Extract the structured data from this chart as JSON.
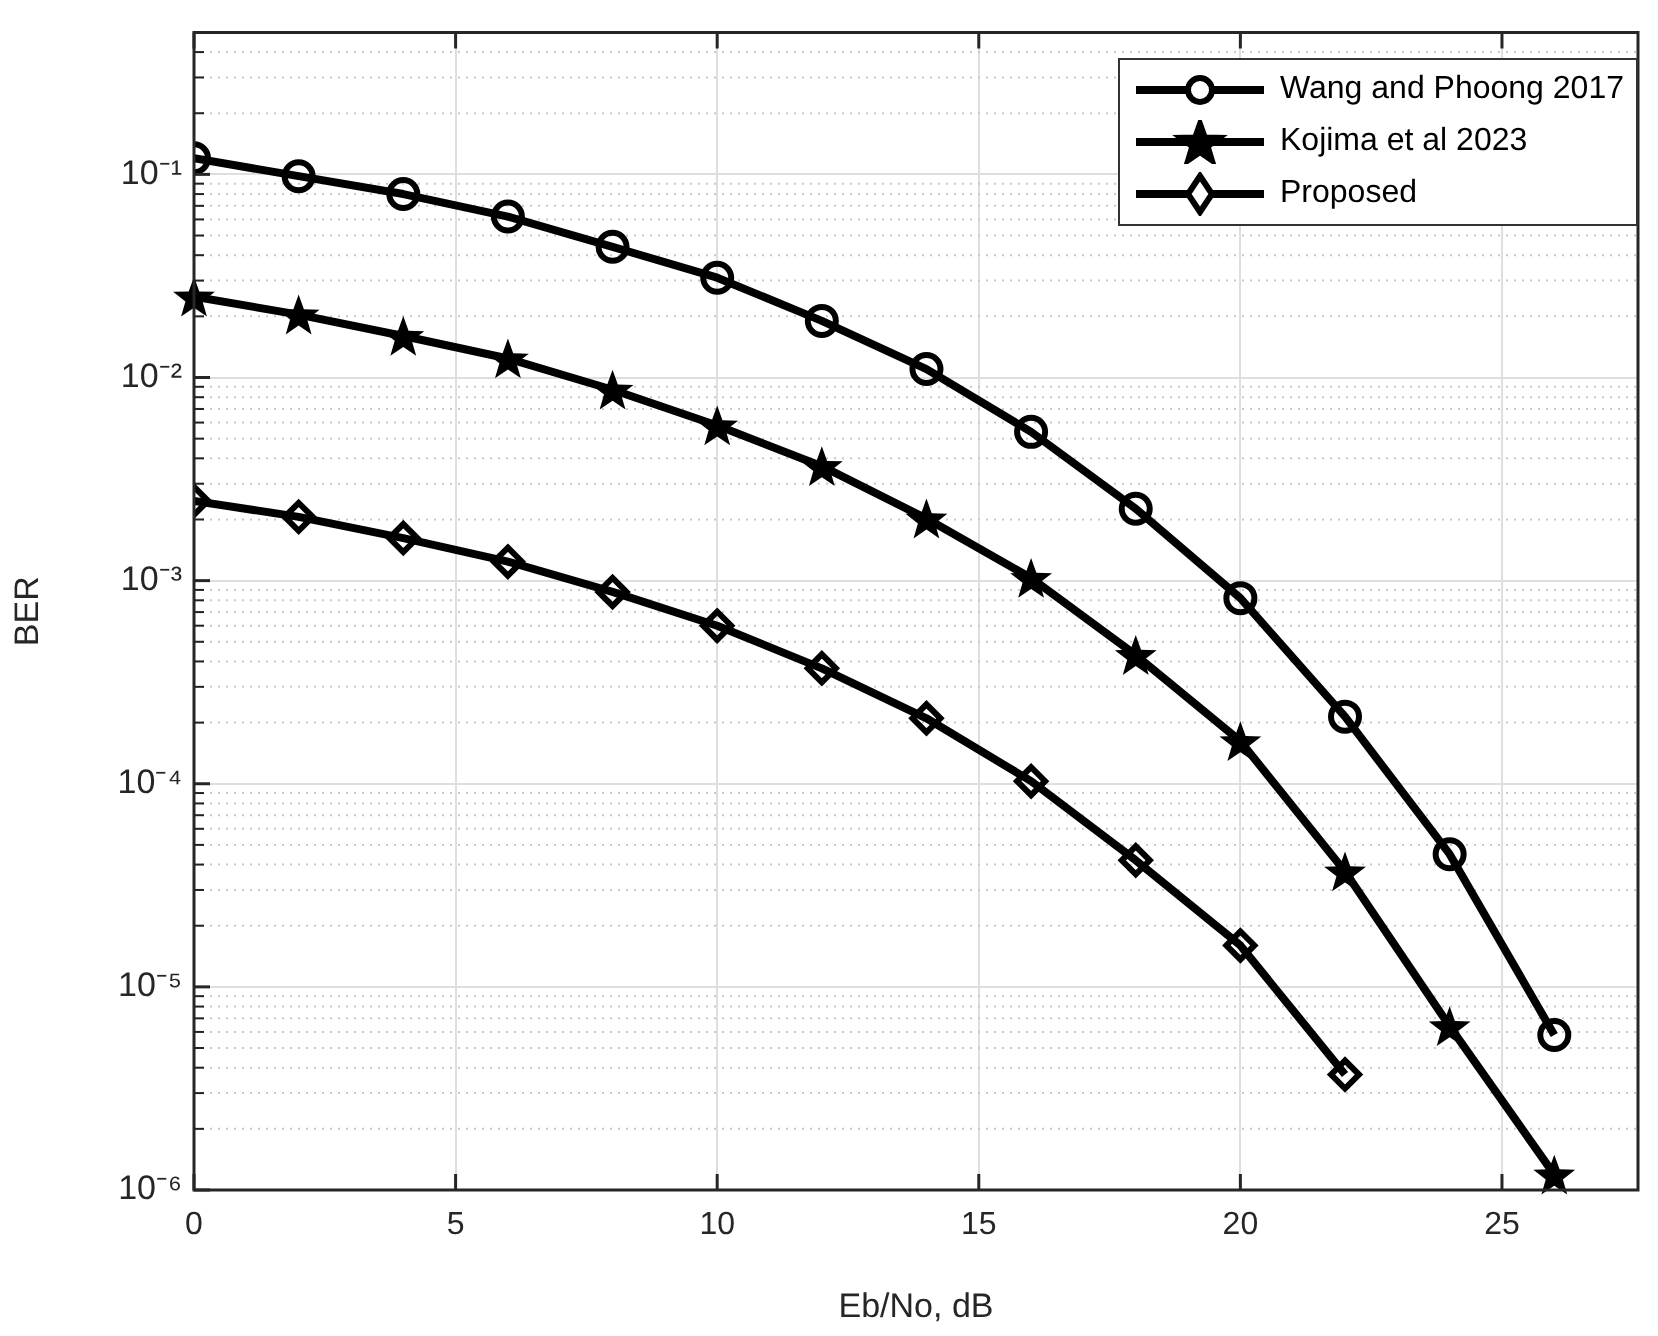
{
  "chart_data": {
    "type": "line",
    "xlabel": "Eb/No, dB",
    "ylabel": "BER",
    "x": [
      0,
      2,
      4,
      6,
      8,
      10,
      12,
      14,
      16,
      18,
      20,
      22,
      24,
      26
    ],
    "series": [
      {
        "name": "Wang and Phoong 2017",
        "color": "#000000",
        "marker": "circle",
        "values": [
          0.12,
          0.098,
          0.08,
          0.062,
          0.044,
          0.031,
          0.019,
          0.011,
          0.0054,
          0.00226,
          0.00082,
          0.000214,
          4.5e-05,
          5.8e-06
        ]
      },
      {
        "name": "Kojima et al 2023",
        "color": "#000000",
        "marker": "star",
        "values": [
          0.025,
          0.0204,
          0.016,
          0.0124,
          0.0087,
          0.0058,
          0.00366,
          0.00202,
          0.00103,
          0.00043,
          0.000162,
          3.7e-05,
          6.4e-06,
          1.19e-06
        ]
      },
      {
        "name": "Proposed",
        "color": "#000000",
        "marker": "diamond",
        "values": [
          0.00247,
          0.00206,
          0.00162,
          0.00124,
          0.00088,
          0.0006,
          0.00037,
          0.00021,
          0.000103,
          4.2e-05,
          1.6e-05,
          3.7e-06,
          null,
          null
        ]
      }
    ],
    "log": "y",
    "xlim": [
      0,
      27.6
    ],
    "xticks": [
      0,
      5,
      10,
      15,
      20,
      25
    ],
    "ylim": [
      1e-06,
      0.5
    ],
    "yticks": [
      {
        "value": 1e-06,
        "label": "10⁻⁶"
      },
      {
        "value": 1e-05,
        "label": "10⁻⁵"
      },
      {
        "value": 0.0001,
        "label": "10⁻⁴"
      },
      {
        "value": 0.001,
        "label": "10⁻³"
      },
      {
        "value": 0.01,
        "label": "10⁻²"
      },
      {
        "value": 0.1,
        "label": "10⁻¹"
      }
    ],
    "grid": true,
    "legend": "top right",
    "line_style": "solid"
  }
}
